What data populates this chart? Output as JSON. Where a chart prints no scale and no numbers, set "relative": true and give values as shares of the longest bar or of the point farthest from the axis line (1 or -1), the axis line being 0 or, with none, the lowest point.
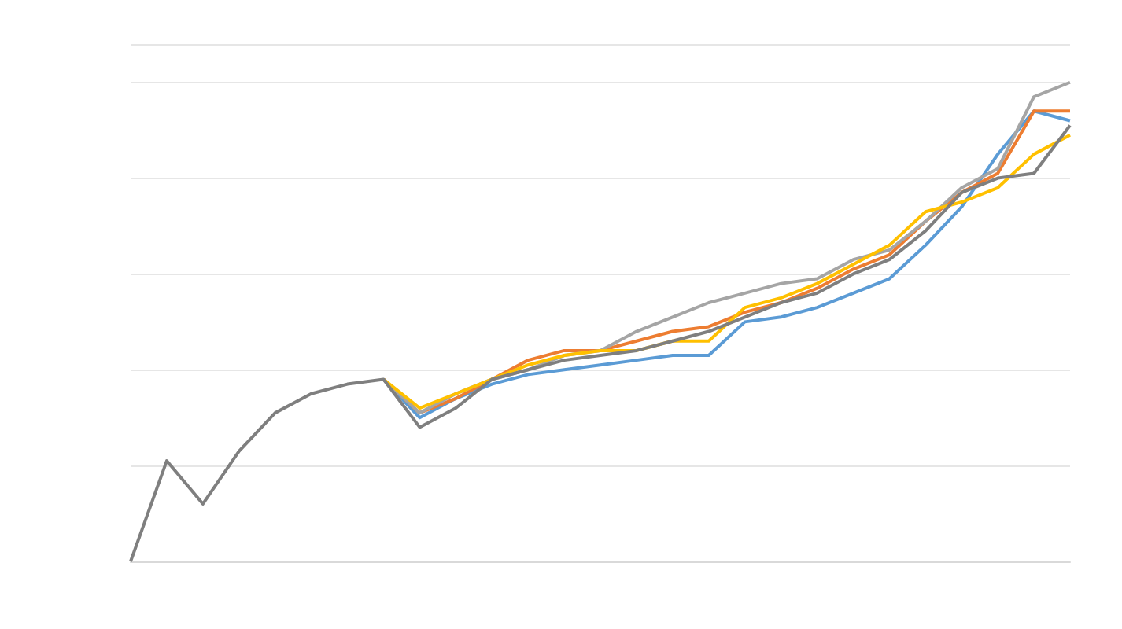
{
  "chart_data": {
    "type": "line",
    "relative": true,
    "grid": "y",
    "marker": "none",
    "line_style": "solid",
    "categories": [
      null,
      null,
      null,
      null,
      null,
      null,
      null,
      null,
      null,
      null,
      null,
      null,
      null,
      null,
      null,
      null,
      null,
      null,
      null,
      null,
      null,
      null,
      null,
      null,
      null,
      null,
      null
    ],
    "series": [
      {
        "color": "#5b9bd5",
        "values": [
          null,
          null,
          null,
          null,
          null,
          null,
          null,
          0.38,
          0.3,
          0.34,
          0.37,
          0.39,
          0.4,
          0.41,
          0.42,
          0.43,
          0.43,
          0.5,
          0.51,
          0.53,
          0.56,
          0.59,
          0.66,
          0.74,
          0.85,
          0.94,
          0.92
        ]
      },
      {
        "color": "#ed7d31",
        "values": [
          null,
          null,
          null,
          null,
          null,
          null,
          null,
          0.38,
          0.31,
          0.34,
          0.38,
          0.42,
          0.44,
          0.44,
          0.46,
          0.48,
          0.49,
          0.52,
          0.54,
          0.57,
          0.61,
          0.64,
          0.71,
          0.77,
          0.81,
          0.94,
          0.94
        ]
      },
      {
        "color": "#a5a5a5",
        "values": [
          null,
          null,
          null,
          null,
          null,
          null,
          null,
          0.38,
          0.31,
          0.35,
          0.38,
          0.4,
          0.43,
          0.44,
          0.48,
          0.51,
          0.54,
          0.56,
          0.58,
          0.59,
          0.63,
          0.65,
          0.71,
          0.78,
          0.82,
          0.97,
          1
        ]
      },
      {
        "color": "#ffc000",
        "values": [
          null,
          null,
          null,
          null,
          null,
          null,
          null,
          0.38,
          0.32,
          0.35,
          0.38,
          0.41,
          0.43,
          0.44,
          0.44,
          0.46,
          0.46,
          0.53,
          0.55,
          0.58,
          0.62,
          0.66,
          0.73,
          0.75,
          0.78,
          0.85,
          0.89
        ]
      },
      {
        "color": "#7f7f7f",
        "values": [
          0,
          0.21,
          0.12,
          0.23,
          0.31,
          0.35,
          0.37,
          0.38,
          0.28,
          0.32,
          0.38,
          0.4,
          0.42,
          0.43,
          0.44,
          0.46,
          0.48,
          0.51,
          0.54,
          0.56,
          0.6,
          0.63,
          0.69,
          0.77,
          0.8,
          0.81,
          0.91
        ]
      }
    ]
  }
}
